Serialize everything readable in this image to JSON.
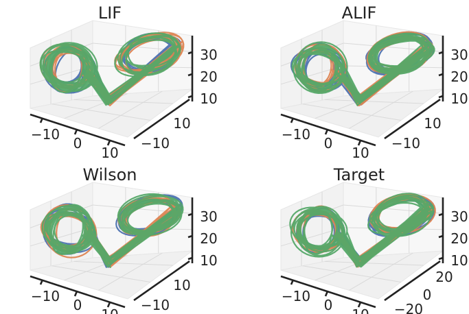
{
  "chart_data": [
    {
      "type": "line3d",
      "title": "LIF",
      "x_ticks": [
        "−10",
        "0",
        "10"
      ],
      "y_ticks": [
        "−10",
        "10"
      ],
      "z_ticks": [
        "10",
        "20",
        "30"
      ],
      "series_colors": [
        "#4c72b0",
        "#dd8452",
        "#55a868"
      ],
      "grid": true
    },
    {
      "type": "line3d",
      "title": "ALIF",
      "x_ticks": [
        "−10",
        "0",
        "10"
      ],
      "y_ticks": [
        "−10",
        "10"
      ],
      "z_ticks": [
        "10",
        "20",
        "30"
      ],
      "series_colors": [
        "#4c72b0",
        "#dd8452",
        "#55a868"
      ],
      "grid": true
    },
    {
      "type": "line3d",
      "title": "Wilson",
      "x_ticks": [
        "−10",
        "0",
        "10"
      ],
      "y_ticks": [
        "−10",
        "10"
      ],
      "z_ticks": [
        "10",
        "20",
        "30"
      ],
      "series_colors": [
        "#4c72b0",
        "#dd8452",
        "#55a868"
      ],
      "grid": true
    },
    {
      "type": "line3d",
      "title": "Target",
      "x_ticks": [
        "−10",
        "0",
        "10"
      ],
      "y_ticks": [
        "−20",
        "0",
        "20"
      ],
      "z_ticks": [
        "10",
        "20",
        "30"
      ],
      "series_colors": [
        "#4c72b0",
        "#dd8452",
        "#55a868"
      ],
      "grid": true
    }
  ]
}
